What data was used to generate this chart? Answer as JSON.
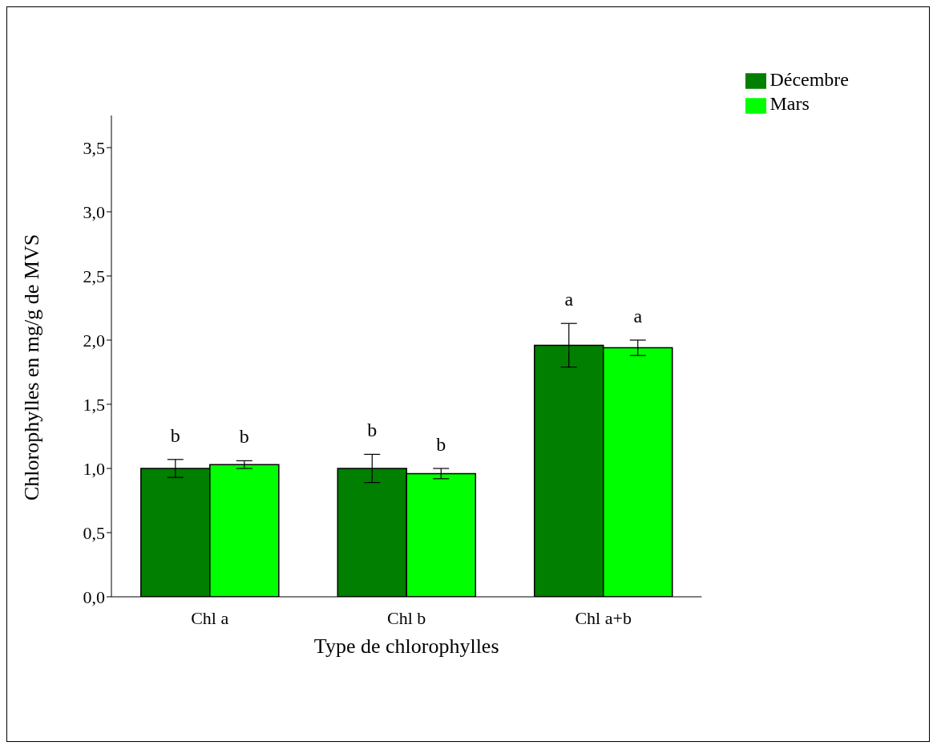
{
  "chart_data": {
    "type": "bar",
    "xlabel": "Type de chlorophylles",
    "ylabel": "Chlorophylles en mg/g de MVS",
    "categories": [
      "Chl a",
      "Chl b",
      "Chl a+b"
    ],
    "series": [
      {
        "name": "Décembre",
        "color": "#007f00",
        "values": [
          1.0,
          1.0,
          1.96
        ],
        "errors": [
          0.07,
          0.11,
          0.17
        ]
      },
      {
        "name": "Mars",
        "color": "#00ff00",
        "values": [
          1.03,
          0.96,
          1.94
        ],
        "errors": [
          0.03,
          0.04,
          0.06
        ]
      }
    ],
    "ylim": [
      0,
      3.75
    ],
    "yticks": [
      {
        "value": 0,
        "label": "0,0"
      },
      {
        "value": 0.5,
        "label": "0,5"
      },
      {
        "value": 1,
        "label": "1,0"
      },
      {
        "value": 1.5,
        "label": "1,5"
      },
      {
        "value": 2,
        "label": "2,0"
      },
      {
        "value": 2.5,
        "label": "2,5"
      },
      {
        "value": 3,
        "label": "3,0"
      },
      {
        "value": 3.5,
        "label": "3,5"
      }
    ],
    "annotations": [
      "b",
      "b",
      "b",
      "b",
      "a",
      "a"
    ],
    "grid": false,
    "legend": "top right"
  }
}
